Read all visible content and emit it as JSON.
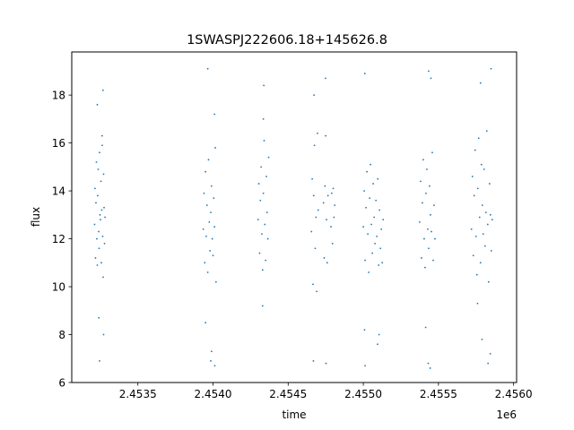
{
  "chart_data": {
    "type": "scatter",
    "title": "1SWASPJ222606.18+145626.8",
    "xlabel": "time",
    "ylabel": "flux",
    "x_offset_label": "1e6",
    "xlim": [
      2453060,
      2456020
    ],
    "ylim": [
      6,
      19.8
    ],
    "x_ticks": [
      {
        "value": 2453500,
        "label": "2.4535"
      },
      {
        "value": 2454000,
        "label": "2.4540"
      },
      {
        "value": 2454500,
        "label": "2.4545"
      },
      {
        "value": 2455000,
        "label": "2.4550"
      },
      {
        "value": 2455500,
        "label": "2.4555"
      },
      {
        "value": 2456000,
        "label": "2.4560"
      }
    ],
    "y_ticks": [
      {
        "value": 6,
        "label": "6"
      },
      {
        "value": 8,
        "label": "8"
      },
      {
        "value": 10,
        "label": "10"
      },
      {
        "value": 12,
        "label": "12"
      },
      {
        "value": 14,
        "label": "14"
      },
      {
        "value": 16,
        "label": "16"
      },
      {
        "value": 18,
        "label": "18"
      }
    ],
    "grid": false,
    "marker_color": "#1f77b4",
    "series": [
      {
        "points": [
          [
            2453212,
            12.6
          ],
          [
            2453215,
            14.1
          ],
          [
            2453218,
            11.2
          ],
          [
            2453221,
            13.5
          ],
          [
            2453224,
            15.2
          ],
          [
            2453227,
            12.0
          ],
          [
            2453230,
            10.9
          ],
          [
            2453233,
            13.8
          ],
          [
            2453236,
            14.9
          ],
          [
            2453239,
            12.3
          ],
          [
            2453242,
            11.6
          ],
          [
            2453245,
            15.6
          ],
          [
            2453248,
            13.0
          ],
          [
            2453251,
            12.8
          ],
          [
            2453254,
            14.4
          ],
          [
            2453257,
            11.0
          ],
          [
            2453260,
            13.2
          ],
          [
            2453263,
            15.9
          ],
          [
            2453266,
            12.1
          ],
          [
            2453269,
            10.4
          ],
          [
            2453272,
            14.7
          ],
          [
            2453275,
            13.3
          ],
          [
            2453278,
            11.8
          ],
          [
            2453281,
            12.9
          ],
          [
            2453230,
            17.6
          ],
          [
            2453262,
            16.3
          ],
          [
            2453240,
            8.7
          ],
          [
            2453268,
            18.2
          ],
          [
            2453245,
            6.9
          ],
          [
            2453272,
            8.0
          ],
          [
            2453935,
            12.4
          ],
          [
            2453940,
            13.9
          ],
          [
            2453945,
            11.0
          ],
          [
            2453950,
            14.8
          ],
          [
            2453955,
            12.1
          ],
          [
            2453960,
            13.4
          ],
          [
            2453965,
            10.6
          ],
          [
            2453970,
            15.3
          ],
          [
            2453975,
            12.7
          ],
          [
            2453980,
            11.5
          ],
          [
            2453985,
            13.1
          ],
          [
            2453990,
            14.2
          ],
          [
            2453995,
            12.0
          ],
          [
            2454000,
            11.3
          ],
          [
            2454005,
            13.7
          ],
          [
            2454010,
            12.5
          ],
          [
            2454015,
            15.8
          ],
          [
            2454020,
            10.2
          ],
          [
            2453965,
            19.1
          ],
          [
            2454010,
            17.2
          ],
          [
            2453950,
            8.5
          ],
          [
            2453990,
            7.3
          ],
          [
            2454012,
            6.7
          ],
          [
            2453985,
            6.9
          ],
          [
            2454300,
            12.8
          ],
          [
            2454305,
            14.3
          ],
          [
            2454310,
            11.4
          ],
          [
            2454315,
            13.6
          ],
          [
            2454320,
            15.0
          ],
          [
            2454325,
            12.2
          ],
          [
            2454330,
            10.7
          ],
          [
            2454335,
            13.9
          ],
          [
            2454340,
            16.1
          ],
          [
            2454345,
            12.6
          ],
          [
            2454350,
            11.1
          ],
          [
            2454355,
            14.6
          ],
          [
            2454360,
            13.1
          ],
          [
            2454365,
            12.0
          ],
          [
            2454370,
            15.4
          ],
          [
            2454338,
            18.4
          ],
          [
            2454335,
            17.0
          ],
          [
            2454330,
            9.2
          ],
          [
            2454655,
            12.3
          ],
          [
            2454660,
            14.5
          ],
          [
            2454665,
            10.1
          ],
          [
            2454670,
            13.8
          ],
          [
            2454675,
            15.9
          ],
          [
            2454680,
            11.6
          ],
          [
            2454685,
            12.9
          ],
          [
            2454690,
            9.8
          ],
          [
            2454695,
            16.4
          ],
          [
            2454700,
            13.2
          ],
          [
            2454668,
            6.9
          ],
          [
            2454672,
            18.0
          ],
          [
            2454735,
            13.5
          ],
          [
            2454740,
            11.2
          ],
          [
            2454745,
            14.2
          ],
          [
            2454750,
            16.3
          ],
          [
            2454755,
            12.8
          ],
          [
            2454760,
            11.0
          ],
          [
            2454765,
            13.8
          ],
          [
            2454748,
            18.7
          ],
          [
            2454752,
            6.8
          ],
          [
            2454785,
            12.5
          ],
          [
            2454790,
            13.9
          ],
          [
            2454795,
            11.8
          ],
          [
            2454800,
            14.1
          ],
          [
            2454805,
            12.9
          ],
          [
            2454810,
            13.4
          ],
          [
            2455000,
            12.5
          ],
          [
            2455006,
            14.0
          ],
          [
            2455012,
            11.1
          ],
          [
            2455018,
            13.3
          ],
          [
            2455024,
            14.8
          ],
          [
            2455030,
            12.2
          ],
          [
            2455036,
            10.6
          ],
          [
            2455042,
            13.7
          ],
          [
            2455048,
            15.1
          ],
          [
            2455054,
            12.6
          ],
          [
            2455060,
            11.4
          ],
          [
            2455066,
            14.3
          ],
          [
            2455072,
            12.9
          ],
          [
            2455078,
            11.8
          ],
          [
            2455084,
            13.6
          ],
          [
            2455090,
            12.1
          ],
          [
            2455096,
            14.5
          ],
          [
            2455102,
            10.9
          ],
          [
            2455108,
            13.2
          ],
          [
            2455114,
            11.6
          ],
          [
            2455120,
            12.4
          ],
          [
            2455126,
            11.0
          ],
          [
            2455132,
            12.8
          ],
          [
            2455010,
            18.9
          ],
          [
            2455012,
            6.7
          ],
          [
            2455008,
            8.2
          ],
          [
            2455095,
            7.6
          ],
          [
            2455105,
            8.0
          ],
          [
            2455375,
            12.7
          ],
          [
            2455381,
            14.4
          ],
          [
            2455387,
            11.2
          ],
          [
            2455393,
            13.5
          ],
          [
            2455399,
            15.3
          ],
          [
            2455405,
            12.0
          ],
          [
            2455411,
            10.8
          ],
          [
            2455417,
            13.9
          ],
          [
            2455423,
            14.9
          ],
          [
            2455429,
            12.4
          ],
          [
            2455435,
            11.6
          ],
          [
            2455441,
            14.2
          ],
          [
            2455447,
            13.0
          ],
          [
            2455453,
            12.3
          ],
          [
            2455459,
            15.6
          ],
          [
            2455465,
            11.1
          ],
          [
            2455471,
            13.4
          ],
          [
            2455477,
            12.0
          ],
          [
            2455435,
            19.0
          ],
          [
            2455450,
            18.7
          ],
          [
            2455432,
            6.8
          ],
          [
            2455445,
            6.6
          ],
          [
            2455415,
            8.3
          ],
          [
            2455720,
            12.4
          ],
          [
            2455726,
            14.6
          ],
          [
            2455732,
            11.3
          ],
          [
            2455738,
            13.8
          ],
          [
            2455744,
            15.7
          ],
          [
            2455750,
            12.1
          ],
          [
            2455756,
            10.5
          ],
          [
            2455762,
            14.1
          ],
          [
            2455768,
            16.2
          ],
          [
            2455774,
            12.9
          ],
          [
            2455780,
            11.0
          ],
          [
            2455786,
            15.1
          ],
          [
            2455792,
            13.4
          ],
          [
            2455798,
            12.2
          ],
          [
            2455804,
            14.9
          ],
          [
            2455810,
            11.7
          ],
          [
            2455816,
            13.1
          ],
          [
            2455822,
            16.5
          ],
          [
            2455828,
            12.6
          ],
          [
            2455834,
            10.2
          ],
          [
            2455840,
            14.3
          ],
          [
            2455846,
            13.0
          ],
          [
            2455852,
            11.5
          ],
          [
            2455858,
            12.8
          ],
          [
            2455780,
            18.5
          ],
          [
            2455850,
            19.1
          ],
          [
            2455790,
            7.8
          ],
          [
            2455830,
            6.8
          ],
          [
            2455845,
            7.2
          ],
          [
            2455760,
            9.3
          ]
        ]
      }
    ]
  }
}
